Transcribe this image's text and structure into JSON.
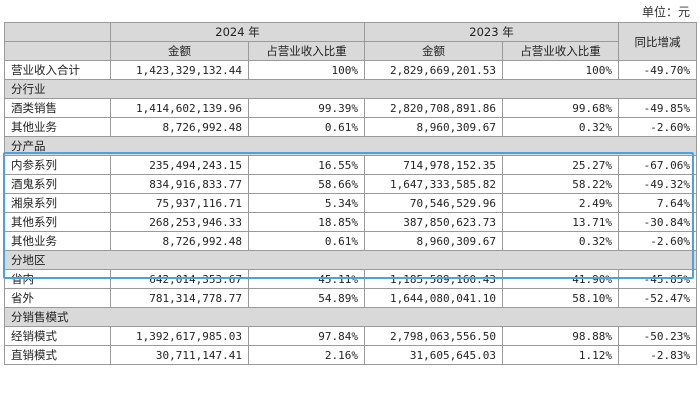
{
  "unit_label": "单位：元",
  "headers": {
    "year_2024": "2024 年",
    "year_2023": "2023 年",
    "yoy": "同比增减",
    "amount": "金额",
    "share": "占营业收入比重"
  },
  "total": {
    "label": "营业收入合计",
    "amt_2024": "1,423,329,132.44",
    "pct_2024": "100%",
    "amt_2023": "2,829,669,201.53",
    "pct_2023": "100%",
    "yoy": "-49.70%"
  },
  "sections": {
    "industry": {
      "title": "分行业",
      "rows": [
        {
          "label": "酒类销售",
          "amt_2024": "1,414,602,139.96",
          "pct_2024": "99.39%",
          "amt_2023": "2,820,708,891.86",
          "pct_2023": "99.68%",
          "yoy": "-49.85%"
        },
        {
          "label": "其他业务",
          "amt_2024": "8,726,992.48",
          "pct_2024": "0.61%",
          "amt_2023": "8,960,309.67",
          "pct_2023": "0.32%",
          "yoy": "-2.60%"
        }
      ]
    },
    "product": {
      "title": "分产品",
      "rows": [
        {
          "label": "内参系列",
          "amt_2024": "235,494,243.15",
          "pct_2024": "16.55%",
          "amt_2023": "714,978,152.35",
          "pct_2023": "25.27%",
          "yoy": "-67.06%"
        },
        {
          "label": "酒鬼系列",
          "amt_2024": "834,916,833.77",
          "pct_2024": "58.66%",
          "amt_2023": "1,647,333,585.82",
          "pct_2023": "58.22%",
          "yoy": "-49.32%"
        },
        {
          "label": "湘泉系列",
          "amt_2024": "75,937,116.71",
          "pct_2024": "5.34%",
          "amt_2023": "70,546,529.96",
          "pct_2023": "2.49%",
          "yoy": "7.64%"
        },
        {
          "label": "其他系列",
          "amt_2024": "268,253,946.33",
          "pct_2024": "18.85%",
          "amt_2023": "387,850,623.73",
          "pct_2023": "13.71%",
          "yoy": "-30.84%"
        },
        {
          "label": "其他业务",
          "amt_2024": "8,726,992.48",
          "pct_2024": "0.61%",
          "amt_2023": "8,960,309.67",
          "pct_2023": "0.32%",
          "yoy": "-2.60%"
        }
      ]
    },
    "region": {
      "title": "分地区",
      "rows": [
        {
          "label": "省内",
          "amt_2024": "642,014,353.67",
          "pct_2024": "45.11%",
          "amt_2023": "1,185,589,160.43",
          "pct_2023": "41.90%",
          "yoy": "-45.85%"
        },
        {
          "label": "省外",
          "amt_2024": "781,314,778.77",
          "pct_2024": "54.89%",
          "amt_2023": "1,644,080,041.10",
          "pct_2023": "58.10%",
          "yoy": "-52.47%"
        }
      ]
    },
    "sales_mode": {
      "title": "分销售模式",
      "rows": [
        {
          "label": "经销模式",
          "amt_2024": "1,392,617,985.03",
          "pct_2024": "97.84%",
          "amt_2023": "2,798,063,556.50",
          "pct_2023": "98.88%",
          "yoy": "-50.23%"
        },
        {
          "label": "直销模式",
          "amt_2024": "30,711,147.41",
          "pct_2024": "2.16%",
          "amt_2023": "31,605,645.03",
          "pct_2023": "1.12%",
          "yoy": "-2.83%"
        }
      ]
    }
  },
  "colors": {
    "header_bg": "#d9d9d9",
    "highlight_border": "#4aa3df",
    "grid": "#9a9a9a"
  }
}
